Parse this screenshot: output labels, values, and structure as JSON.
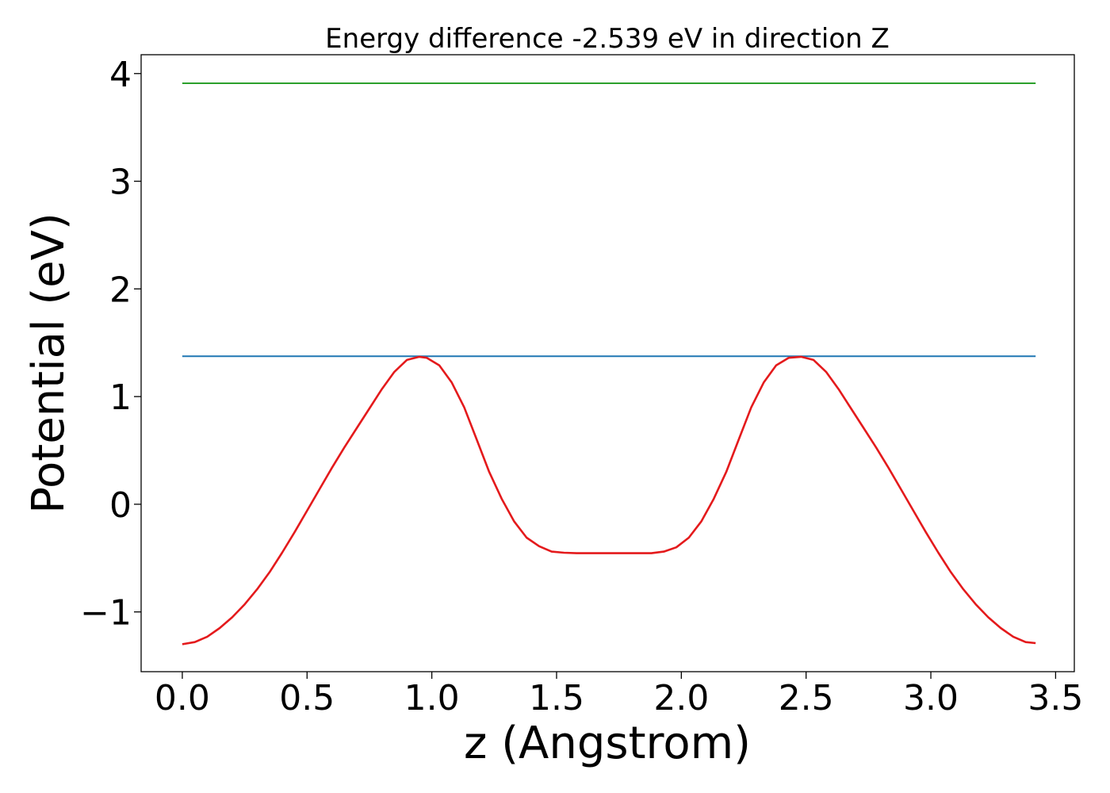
{
  "chart_data": {
    "type": "line",
    "title": "Energy difference -2.539 eV in direction Z",
    "xlabel": "z (Angstrom)",
    "ylabel": "Potential (eV)",
    "xlim": [
      -0.165,
      3.575
    ],
    "ylim": [
      -1.555,
      4.175
    ],
    "xticks": [
      0.0,
      0.5,
      1.0,
      1.5,
      2.0,
      2.5,
      3.0,
      3.5
    ],
    "xtick_labels": [
      "0.0",
      "0.5",
      "1.0",
      "1.5",
      "2.0",
      "2.5",
      "3.0",
      "3.5"
    ],
    "yticks": [
      -1,
      0,
      1,
      2,
      3,
      4
    ],
    "ytick_labels": [
      "−1",
      "0",
      "1",
      "2",
      "3",
      "4"
    ],
    "grid": false,
    "legend": "none",
    "series": [
      {
        "color": "#2ca02c",
        "x": [
          0.0,
          3.42
        ],
        "y": [
          3.91,
          3.91
        ]
      },
      {
        "color": "#1f77b4",
        "x": [
          0.0,
          3.42
        ],
        "y": [
          1.375,
          1.375
        ]
      },
      {
        "color": "#e41a1c",
        "x": [
          0.0,
          0.05,
          0.1,
          0.15,
          0.2,
          0.25,
          0.3,
          0.35,
          0.4,
          0.45,
          0.5,
          0.55,
          0.6,
          0.65,
          0.7,
          0.75,
          0.8,
          0.85,
          0.9,
          0.95,
          0.98,
          1.03,
          1.08,
          1.13,
          1.18,
          1.23,
          1.28,
          1.33,
          1.38,
          1.43,
          1.48,
          1.53,
          1.58,
          1.63,
          1.68,
          1.73,
          1.78,
          1.83,
          1.88,
          1.93,
          1.98,
          2.03,
          2.08,
          2.13,
          2.18,
          2.23,
          2.28,
          2.33,
          2.38,
          2.43,
          2.48,
          2.53,
          2.58,
          2.63,
          2.68,
          2.73,
          2.78,
          2.83,
          2.88,
          2.93,
          2.98,
          3.03,
          3.08,
          3.13,
          3.18,
          3.23,
          3.28,
          3.33,
          3.38,
          3.42
        ],
        "y": [
          -1.3,
          -1.28,
          -1.23,
          -1.15,
          -1.05,
          -0.93,
          -0.79,
          -0.63,
          -0.45,
          -0.26,
          -0.06,
          0.14,
          0.34,
          0.53,
          0.71,
          0.89,
          1.07,
          1.23,
          1.34,
          1.37,
          1.36,
          1.29,
          1.13,
          0.9,
          0.6,
          0.3,
          0.05,
          -0.16,
          -0.31,
          -0.39,
          -0.44,
          -0.45,
          -0.455,
          -0.455,
          -0.455,
          -0.455,
          -0.455,
          -0.455,
          -0.455,
          -0.44,
          -0.4,
          -0.31,
          -0.16,
          0.05,
          0.3,
          0.6,
          0.9,
          1.13,
          1.29,
          1.36,
          1.37,
          1.34,
          1.23,
          1.07,
          0.89,
          0.71,
          0.53,
          0.34,
          0.14,
          -0.06,
          -0.26,
          -0.45,
          -0.63,
          -0.79,
          -0.93,
          -1.05,
          -1.15,
          -1.23,
          -1.28,
          -1.29
        ]
      }
    ]
  }
}
